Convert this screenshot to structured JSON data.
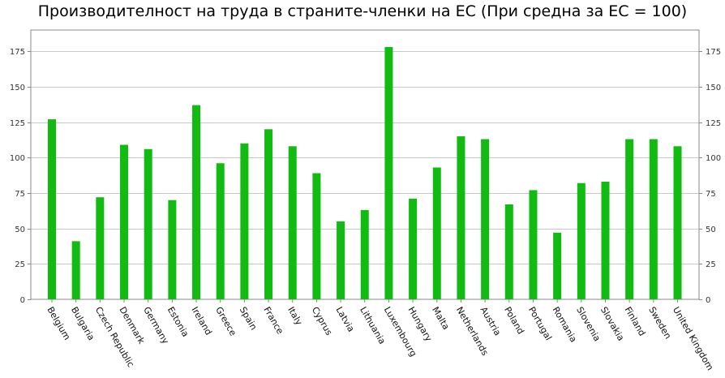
{
  "chart_data": {
    "type": "bar",
    "title": "Производителност на труда в страните-членки на ЕС (При средна за ЕС = 100)",
    "xlabel": "",
    "ylabel": "",
    "ylim": [
      0,
      190
    ],
    "yticks": [
      0,
      25,
      50,
      75,
      100,
      125,
      150,
      175
    ],
    "grid": true,
    "legend": "none",
    "bar_color": "#11bb11",
    "categories": [
      "Belgium",
      "Bulgaria",
      "Czech Republic",
      "Denmark",
      "Germany",
      "Estonia",
      "Ireland",
      "Greece",
      "Spain",
      "France",
      "Italy",
      "Cyprus",
      "Latvia",
      "Lithuania",
      "Luxembourg",
      "Hungary",
      "Malta",
      "Netherlands",
      "Austria",
      "Poland",
      "Portugal",
      "Romania",
      "Slovenia",
      "Slovakia",
      "Finland",
      "Sweden",
      "United Kingdom"
    ],
    "values": [
      127,
      41,
      72,
      109,
      106,
      70,
      137,
      96,
      110,
      120,
      108,
      89,
      55,
      63,
      178,
      71,
      93,
      115,
      113,
      67,
      77,
      47,
      82,
      83,
      113,
      113,
      108
    ]
  }
}
